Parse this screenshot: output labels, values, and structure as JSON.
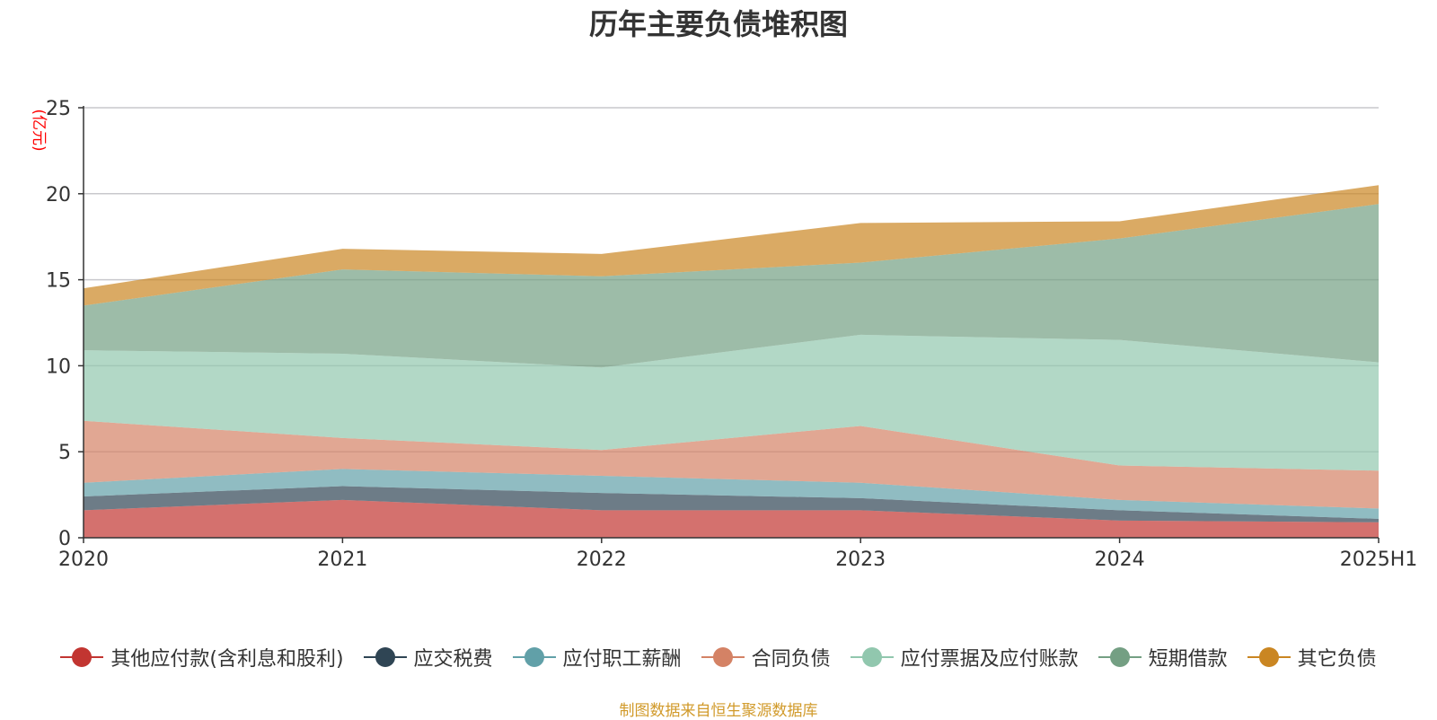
{
  "chart_data": {
    "type": "area",
    "stacked": true,
    "title": "历年主要负债堆积图",
    "ylabel": "(亿元)",
    "xlabel": "",
    "categories": [
      "2020",
      "2021",
      "2022",
      "2023",
      "2024",
      "2025H1"
    ],
    "ylim": [
      0,
      25
    ],
    "yticks": [
      0,
      5,
      10,
      15,
      20,
      25
    ],
    "grid": true,
    "legend_position": "bottom",
    "series": [
      {
        "name": "其他应付款(含利息和股利)",
        "color": "#c23531",
        "values": [
          1.6,
          2.2,
          1.6,
          1.6,
          1.0,
          0.9
        ]
      },
      {
        "name": "应交税费",
        "color": "#2f4554",
        "values": [
          0.8,
          0.8,
          1.0,
          0.7,
          0.6,
          0.2
        ]
      },
      {
        "name": "应付职工薪酬",
        "color": "#61a0a8",
        "values": [
          0.8,
          1.0,
          1.0,
          0.9,
          0.6,
          0.6
        ]
      },
      {
        "name": "合同负债",
        "color": "#d48265",
        "values": [
          3.6,
          1.8,
          1.5,
          3.3,
          2.0,
          2.2
        ]
      },
      {
        "name": "应付票据及应付账款",
        "color": "#91c7ae",
        "values": [
          4.1,
          4.9,
          4.8,
          5.3,
          7.3,
          6.3
        ]
      },
      {
        "name": "短期借款",
        "color": "#749f83",
        "values": [
          2.6,
          4.9,
          5.3,
          4.2,
          5.9,
          9.2
        ]
      },
      {
        "name": "其它负债",
        "color": "#ca8622",
        "values": [
          1.0,
          1.2,
          1.3,
          2.3,
          1.0,
          1.1
        ]
      }
    ]
  },
  "footer": {
    "source": "制图数据来自恒生聚源数据库"
  }
}
